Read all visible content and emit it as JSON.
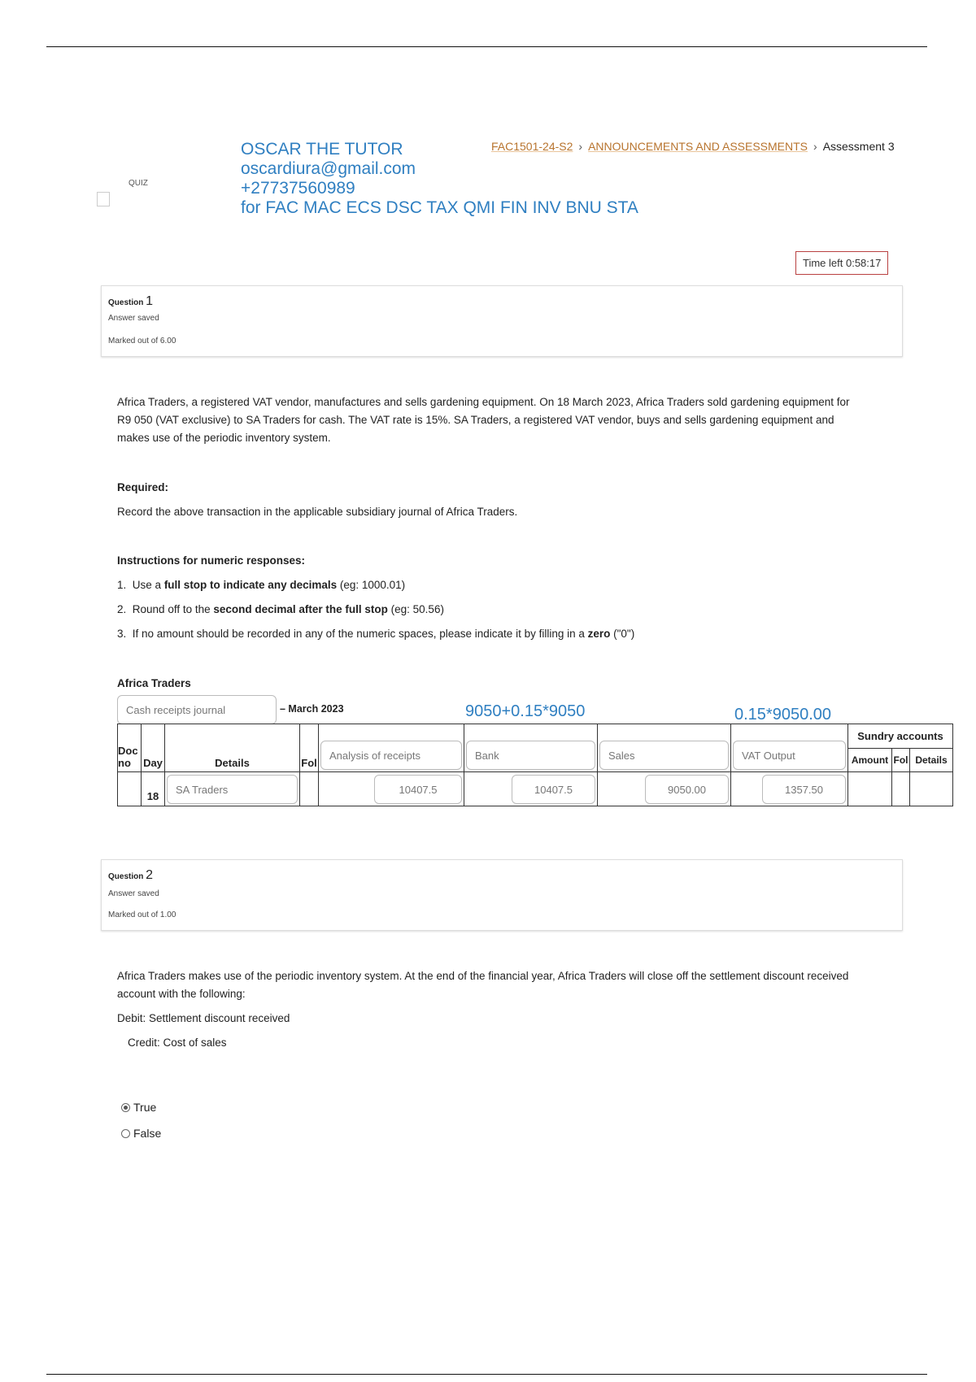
{
  "header": {
    "quiz_label": "QUIZ",
    "watermark": [
      "OSCAR THE TUTOR",
      "oscardiura@gmail.com",
      "+27737560989",
      "for FAC MAC ECS DSC TAX QMI FIN INV BNU STA"
    ],
    "breadcrumb": [
      "FAC1501-24-S2",
      "ANNOUNCEMENTS AND ASSESSMENTS",
      "Assessment 3"
    ],
    "timer": "Time left 0:58:17"
  },
  "q1": {
    "label": "Question",
    "number": "1",
    "status": "Answer saved",
    "marks": "Marked out of 6.00",
    "text": "Africa Traders, a registered VAT vendor, manufactures and sells gardening equipment. On 18 March 2023, Africa Traders sold gardening equipment for R9 050 (VAT exclusive) to SA Traders for cash. The VAT rate is 15%. SA Traders, a registered VAT vendor, buys and sells gardening equipment and makes use of the periodic inventory system.",
    "required_heading": "Required:",
    "required_text": "Record the above transaction in the applicable subsidiary journal of Africa Traders.",
    "instructions_heading": "Instructions for numeric responses:",
    "instructions": [
      {
        "n": "1.",
        "pre": "Use a ",
        "bold": "full stop to indicate any decimals",
        "post": " (eg: 1000.01)"
      },
      {
        "n": "2.",
        "pre": "Round off to the ",
        "bold": "second decimal after the full stop",
        "post": " (eg: 50.56)"
      },
      {
        "n": "3.",
        "pre": "If no amount should be recorded in any of the numeric spaces, please indicate it by filling in a ",
        "bold": "zero",
        "post": " (\"0\")"
      }
    ],
    "company": "Africa Traders",
    "journal_select": "Cash receipts journal",
    "period": "– March 2023",
    "annotations": [
      "9050+0.15*9050",
      "0.15*9050.00"
    ],
    "table": {
      "headers": {
        "doc": "Doc no",
        "day": "Day",
        "details": "Details",
        "fol": "Fol",
        "sundry": "Sundry accounts",
        "amount": "Amount",
        "sfol": "Fol",
        "sdetails": "Details"
      },
      "column_selects": [
        "Analysis of receipts",
        "Bank",
        "Sales",
        "VAT Output"
      ],
      "row": {
        "day": "18",
        "details": "SA Traders",
        "values": [
          "10407.5",
          "10407.5",
          "9050.00",
          "1357.50"
        ]
      }
    }
  },
  "q2": {
    "label": "Question",
    "number": "2",
    "status": "Answer saved",
    "marks": "Marked out of 1.00",
    "text": "Africa Traders makes use of the periodic inventory system. At the end of the financial year, Africa Traders will close off the settlement discount received account with the following:",
    "debit": "Debit: Settlement discount received",
    "credit": "Credit: Cost of sales",
    "options": [
      {
        "label": "True",
        "selected": true
      },
      {
        "label": "False",
        "selected": false
      }
    ]
  }
}
